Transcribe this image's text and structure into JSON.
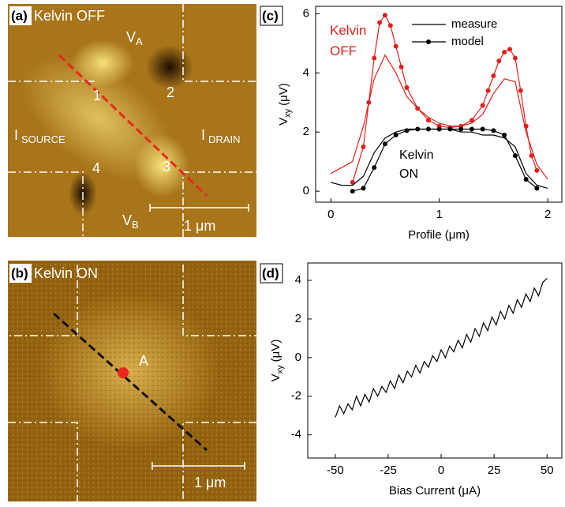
{
  "images": [
    {
      "label": "(a)",
      "title": "Kelvin OFF",
      "v_a": {
        "base": "V",
        "sub": "A"
      },
      "v_b": {
        "base": "V",
        "sub": "B"
      },
      "i_source": {
        "base": "I",
        "sub": "SOURCE"
      },
      "i_drain": {
        "base": "I",
        "sub": "DRAIN"
      },
      "points": [
        "1",
        "2",
        "3",
        "4"
      ],
      "scale_bar": "1 μm"
    },
    {
      "label": "(b)",
      "title": "Kelvin ON",
      "point": "A",
      "scale_bar": "1 μm"
    }
  ],
  "chart_data": [
    {
      "type": "line",
      "panel_label": "(c)",
      "x_label": "Profile (μm)",
      "y_label": {
        "base": "V",
        "sub": "xy",
        "unit": "(μV)"
      },
      "xlim": [
        -0.14,
        2.13
      ],
      "xticks": [
        0,
        1,
        2
      ],
      "ylim": [
        -0.37,
        6.25
      ],
      "yticks": [
        0,
        2,
        4,
        6
      ],
      "series": [
        {
          "name": "measure",
          "color": "#e0201b",
          "marker": false,
          "x": [
            0,
            0.1,
            0.2,
            0.3,
            0.4,
            0.5,
            0.6,
            0.7,
            0.8,
            0.9,
            1.0,
            1.1,
            1.2,
            1.3,
            1.4,
            1.5,
            1.6,
            1.7,
            1.8,
            1.9,
            2.0
          ],
          "values": [
            0.6,
            0.8,
            1.0,
            2.2,
            3.8,
            4.6,
            4.0,
            3.2,
            2.8,
            2.5,
            2.3,
            2.2,
            2.2,
            2.3,
            2.6,
            3.3,
            3.8,
            3.7,
            2.0,
            0.9,
            0.4
          ]
        },
        {
          "name": "model",
          "color": "#e0201b",
          "marker": true,
          "x": [
            0.2,
            0.3,
            0.35,
            0.4,
            0.45,
            0.5,
            0.55,
            0.6,
            0.65,
            0.7,
            0.8,
            0.9,
            1.0,
            1.1,
            1.2,
            1.3,
            1.4,
            1.45,
            1.5,
            1.55,
            1.6,
            1.65,
            1.7,
            1.75,
            1.8,
            1.85,
            1.9
          ],
          "values": [
            0.3,
            1.5,
            3.0,
            4.5,
            5.7,
            5.95,
            5.6,
            4.9,
            4.2,
            3.5,
            2.8,
            2.4,
            2.2,
            2.15,
            2.2,
            2.4,
            2.9,
            3.4,
            3.9,
            4.4,
            4.7,
            4.8,
            4.5,
            3.4,
            2.2,
            1.2,
            0.7
          ]
        },
        {
          "name": "measure",
          "color": "#000000",
          "marker": false,
          "x": [
            0,
            0.1,
            0.2,
            0.3,
            0.4,
            0.5,
            0.6,
            0.7,
            0.8,
            0.9,
            1.0,
            1.1,
            1.2,
            1.3,
            1.4,
            1.5,
            1.6,
            1.7,
            1.8,
            1.9,
            2.0
          ],
          "values": [
            0.3,
            0.2,
            0.2,
            0.5,
            1.3,
            1.8,
            2.0,
            2.1,
            2.1,
            2.1,
            2.1,
            2.1,
            2.0,
            2.0,
            1.9,
            1.9,
            1.8,
            1.5,
            0.6,
            0.2,
            0.1
          ]
        },
        {
          "name": "model",
          "color": "#000000",
          "marker": true,
          "x": [
            0.2,
            0.3,
            0.4,
            0.5,
            0.6,
            0.7,
            0.8,
            0.9,
            1.0,
            1.1,
            1.2,
            1.3,
            1.4,
            1.5,
            1.6,
            1.7,
            1.8,
            1.9
          ],
          "values": [
            0,
            0.1,
            0.8,
            1.6,
            1.9,
            2.05,
            2.1,
            2.1,
            2.1,
            2.1,
            2.1,
            2.1,
            2.1,
            2.05,
            1.9,
            1.2,
            0.4,
            0.1
          ]
        }
      ],
      "annotations": [
        {
          "lines": [
            "Kelvin",
            "OFF"
          ],
          "color": "#e0201b"
        },
        {
          "lines": [
            "Kelvin",
            "ON"
          ],
          "color": "#000000"
        }
      ]
    },
    {
      "type": "line",
      "panel_label": "(d)",
      "x_label": "Bias Current (μA)",
      "y_label": {
        "base": "V",
        "sub": "xy",
        "unit": "(μV)"
      },
      "xlim": [
        -63,
        57
      ],
      "xticks": [
        -50,
        -25,
        0,
        25,
        50
      ],
      "ylim": [
        -5.2,
        4.9
      ],
      "yticks": [
        -4,
        -2,
        0,
        2,
        4
      ],
      "series": [
        {
          "color": "#000000",
          "marker": false,
          "x": [
            -50,
            -48,
            -46,
            -44,
            -42,
            -40,
            -38,
            -36,
            -34,
            -32,
            -30,
            -28,
            -26,
            -24,
            -22,
            -20,
            -18,
            -16,
            -14,
            -12,
            -10,
            -8,
            -6,
            -4,
            -2,
            0,
            2,
            4,
            6,
            8,
            10,
            12,
            14,
            16,
            18,
            20,
            22,
            24,
            26,
            28,
            30,
            32,
            34,
            36,
            38,
            40,
            42,
            44,
            46,
            48,
            50
          ],
          "values": [
            -3.1,
            -2.5,
            -2.9,
            -2.4,
            -2.7,
            -2.0,
            -2.5,
            -1.9,
            -2.3,
            -1.6,
            -2.0,
            -1.5,
            -1.8,
            -1.2,
            -1.6,
            -0.9,
            -1.3,
            -0.7,
            -1.0,
            -0.4,
            -0.8,
            -0.2,
            -0.5,
            0.1,
            -0.2,
            0.4,
            0.0,
            0.6,
            0.3,
            0.9,
            0.5,
            1.2,
            0.8,
            1.5,
            1.1,
            1.8,
            1.4,
            2.1,
            1.7,
            2.4,
            2.0,
            2.7,
            2.3,
            3.0,
            2.6,
            3.3,
            2.9,
            3.6,
            3.2,
            3.9,
            4.1
          ]
        }
      ]
    }
  ]
}
